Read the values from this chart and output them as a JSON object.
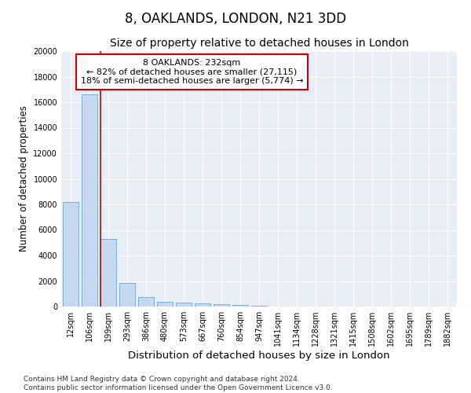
{
  "title": "8, OAKLANDS, LONDON, N21 3DD",
  "subtitle": "Size of property relative to detached houses in London",
  "xlabel": "Distribution of detached houses by size in London",
  "ylabel": "Number of detached properties",
  "categories": [
    "12sqm",
    "106sqm",
    "199sqm",
    "293sqm",
    "386sqm",
    "480sqm",
    "573sqm",
    "667sqm",
    "760sqm",
    "854sqm",
    "947sqm",
    "1041sqm",
    "1134sqm",
    "1228sqm",
    "1321sqm",
    "1415sqm",
    "1508sqm",
    "1602sqm",
    "1695sqm",
    "1789sqm",
    "1882sqm"
  ],
  "values": [
    8200,
    16600,
    5300,
    1850,
    750,
    350,
    280,
    230,
    190,
    140,
    60,
    30,
    20,
    15,
    10,
    8,
    6,
    5,
    4,
    3,
    2
  ],
  "bar_color": "#c5d8f0",
  "bar_edge_color": "#7bafd4",
  "vline_color": "#cc0000",
  "vline_x_index": 2,
  "annotation_text": "8 OAKLANDS: 232sqm\n← 82% of detached houses are smaller (27,115)\n18% of semi-detached houses are larger (5,774) →",
  "annotation_box_color": "#ffffff",
  "annotation_box_edge": "#cc0000",
  "ylim": [
    0,
    20000
  ],
  "yticks": [
    0,
    2000,
    4000,
    6000,
    8000,
    10000,
    12000,
    14000,
    16000,
    18000,
    20000
  ],
  "bg_color": "#e8eef8",
  "footer": "Contains HM Land Registry data © Crown copyright and database right 2024.\nContains public sector information licensed under the Open Government Licence v3.0.",
  "title_fontsize": 12,
  "subtitle_fontsize": 10,
  "xlabel_fontsize": 9.5,
  "ylabel_fontsize": 8.5,
  "tick_fontsize": 7,
  "footer_fontsize": 6.5,
  "annotation_fontsize": 8
}
